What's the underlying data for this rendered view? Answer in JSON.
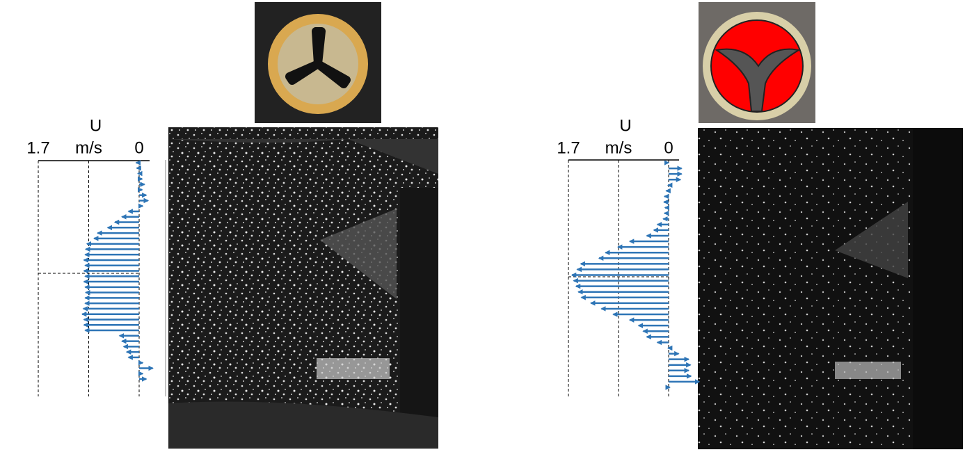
{
  "chart_data": [
    {
      "type": "bar",
      "x_label": "U",
      "xlim": [
        1.7,
        0
      ],
      "xticks": [
        1.7,
        {
          "value": 0.85,
          "label": "m/s"
        },
        0
      ],
      "color": "#2e75b6",
      "values": [
        0.05,
        0.04,
        0.02,
        -0.05,
        -0.09,
        -0.05,
        -0.12,
        -0.15,
        -0.06,
        0.18,
        0.29,
        0.41,
        0.53,
        0.7,
        0.76,
        0.88,
        0.9,
        0.91,
        0.93,
        0.91,
        0.93,
        0.91,
        0.93,
        0.91,
        0.9,
        0.91,
        0.91,
        0.94,
        0.96,
        0.93,
        0.93,
        0.91,
        0.33,
        0.29,
        0.26,
        0.21,
        0.18,
        -0.06,
        -0.23,
        -0.06,
        -0.12
      ]
    },
    {
      "type": "bar",
      "x_label": "U",
      "xlim": [
        1.7,
        0
      ],
      "xticks": [
        1.7,
        {
          "value": 0.85,
          "label": "m/s"
        },
        0
      ],
      "color": "#2e75b6",
      "values": [
        0,
        -0.22,
        -0.22,
        -0.2,
        0.01,
        0.04,
        0.07,
        0.08,
        0.06,
        0.07,
        0.09,
        0.19,
        0.25,
        0.37,
        0.66,
        0.86,
        1.07,
        1.18,
        1.49,
        1.55,
        1.64,
        1.61,
        1.57,
        1.53,
        1.48,
        1.32,
        1.14,
        0.94,
        0.66,
        0.51,
        0.43,
        0.37,
        0.19,
        0.01,
        -0.17,
        -0.34,
        -0.37,
        -0.34,
        -0.38,
        -0.52,
        -0.02
      ]
    }
  ]
}
